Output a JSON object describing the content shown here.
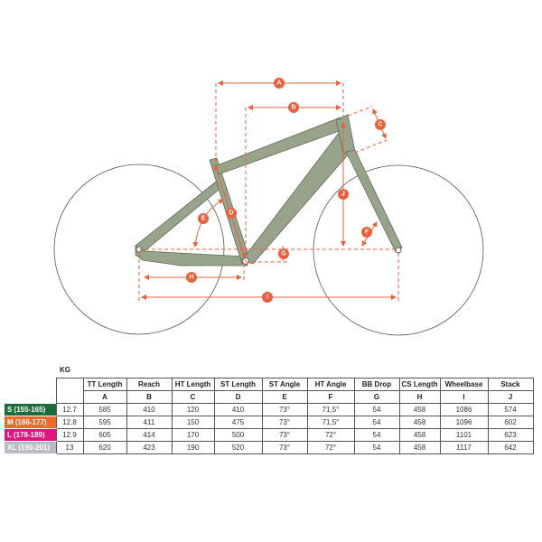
{
  "colors": {
    "frame": "#97a38a",
    "frame_stroke": "#5f6a55",
    "dimension": "#e8603c",
    "wheel": "#555555"
  },
  "dimension_labels": {
    "A": "A",
    "B": "B",
    "C": "C",
    "D": "D",
    "E": "E",
    "F": "F",
    "G": "G",
    "H": "H",
    "I": "I",
    "J": "J"
  },
  "table": {
    "weight_label": "KG",
    "headers": [
      "TT Length",
      "Reach",
      "HT Length",
      "ST Length",
      "ST Angle",
      "HT Angle",
      "BB Drop",
      "CS Length",
      "Wheelbase",
      "Stack"
    ],
    "letters": [
      "A",
      "B",
      "C",
      "D",
      "E",
      "F",
      "G",
      "H",
      "I",
      "J"
    ],
    "rows": [
      {
        "size": "S (155-165)",
        "color": "#1e6b3a",
        "kg": "12.7",
        "values": [
          "585",
          "410",
          "120",
          "410",
          "73°",
          "71,5°",
          "54",
          "458",
          "1086",
          "574"
        ]
      },
      {
        "size": "M (166-177)",
        "color": "#ee6a2c",
        "kg": "12.8",
        "values": [
          "595",
          "411",
          "150",
          "475",
          "73°",
          "71,5°",
          "54",
          "458",
          "1096",
          "602"
        ]
      },
      {
        "size": "L (178-189)",
        "color": "#e0157f",
        "kg": "12.9",
        "values": [
          "605",
          "414",
          "170",
          "500",
          "73°",
          "72°",
          "54",
          "458",
          "1101",
          "623"
        ]
      },
      {
        "size": "XL (190-201)",
        "color": "#b9bcc4",
        "kg": "13",
        "values": [
          "620",
          "423",
          "190",
          "520",
          "73°",
          "72°",
          "54",
          "458",
          "1117",
          "642"
        ]
      }
    ]
  }
}
